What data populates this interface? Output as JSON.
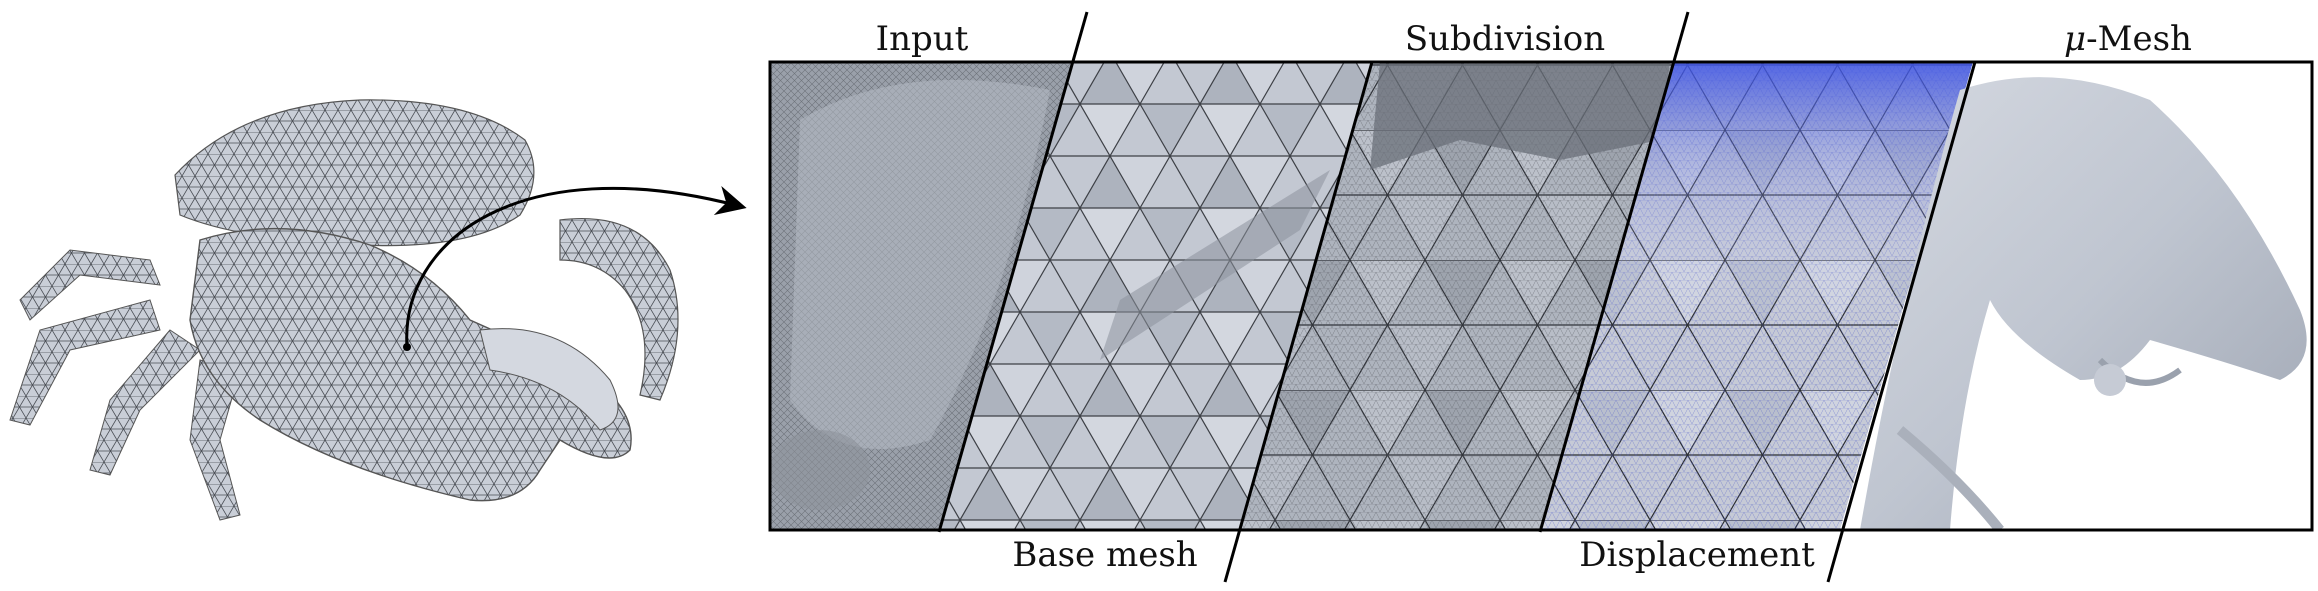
{
  "figure": {
    "labels_top": {
      "input": "Input",
      "subdivision": "Subdivision",
      "mu_mesh_symbol": "μ",
      "mu_mesh_suffix": "-Mesh"
    },
    "labels_bottom": {
      "base_mesh": "Base mesh",
      "displacement": "Displacement"
    },
    "colors": {
      "mesh_light": "#c4c9d3",
      "mesh_mid": "#a9afba",
      "mesh_dark": "#6f747c",
      "displacement_blue": "#4b5ee0",
      "smooth_surface": "#bec4cf",
      "frame": "#000000"
    }
  }
}
